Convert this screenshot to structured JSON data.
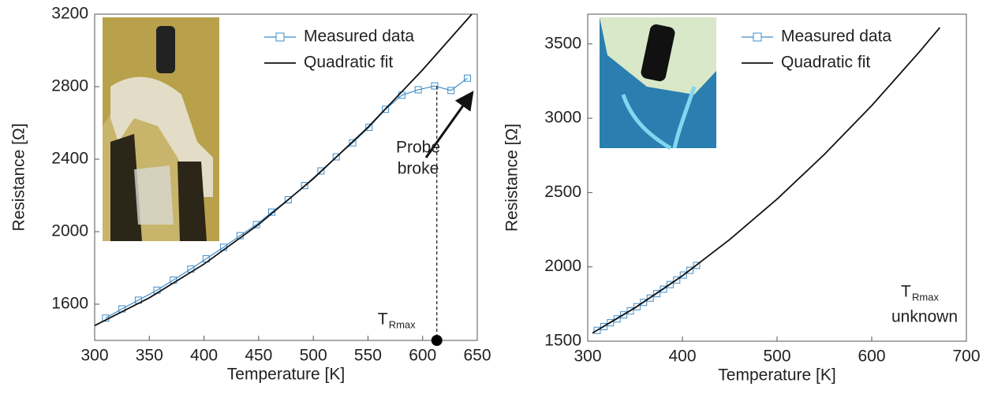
{
  "chart_data": [
    {
      "type": "line",
      "x_label": "Temperature [K]",
      "y_label": "Resistance [Ω]",
      "xlim": [
        300,
        650
      ],
      "xticks": [
        300,
        350,
        400,
        450,
        500,
        550,
        600,
        650
      ],
      "ylim": [
        1400,
        3200
      ],
      "yticks": [
        1600,
        2000,
        2400,
        2800,
        3200
      ],
      "legend": "top",
      "series": [
        {
          "name": "Measured data",
          "color": "#3f8cc8",
          "marker": "square",
          "x": [
            310,
            325,
            340,
            357,
            372,
            388,
            402,
            418,
            433,
            448,
            462,
            477,
            492,
            507,
            521,
            536,
            551,
            566,
            581,
            596,
            611,
            626,
            641
          ],
          "values": [
            1523,
            1574,
            1622,
            1677,
            1733,
            1794,
            1850,
            1914,
            1978,
            2039,
            2108,
            2176,
            2254,
            2335,
            2413,
            2490,
            2576,
            2675,
            2753,
            2783,
            2804,
            2779,
            2847
          ]
        },
        {
          "name": "Quadratic fit",
          "color": "#111111",
          "x": [
            300,
            350,
            400,
            450,
            500,
            550,
            600,
            645
          ],
          "values": [
            1482,
            1635,
            1821,
            2040,
            2292,
            2576,
            2893,
            3200
          ]
        }
      ],
      "annotations": [
        {
          "lines": [
            "Probe",
            "broke"
          ]
        },
        {
          "text": "T",
          "subscript": "Rmax",
          "x": 613
        }
      ]
    },
    {
      "type": "line",
      "x_label": "Temperature [K]",
      "y_label": "Resistance [Ω]",
      "xlim": [
        300,
        700
      ],
      "xticks": [
        300,
        400,
        500,
        600,
        700
      ],
      "ylim": [
        1500,
        3700
      ],
      "yticks": [
        1500,
        2000,
        2500,
        3000,
        3500
      ],
      "legend": "top",
      "series": [
        {
          "name": "Measured data",
          "color": "#3f8cc8",
          "marker": "square",
          "x": [
            310,
            317,
            324,
            331,
            338,
            345,
            352,
            359,
            366,
            373,
            380,
            387,
            394,
            401,
            408,
            415
          ],
          "values": [
            1573,
            1598,
            1624,
            1650,
            1677,
            1704,
            1732,
            1761,
            1790,
            1820,
            1850,
            1881,
            1912,
            1945,
            1977,
            2010
          ]
        },
        {
          "name": "Quadratic fit",
          "color": "#111111",
          "x": [
            305,
            350,
            400,
            450,
            500,
            550,
            600,
            650,
            672
          ],
          "values": [
            1555,
            1725,
            1940,
            2184,
            2456,
            2757,
            3085,
            3444,
            3610
          ]
        }
      ],
      "annotations": [
        {
          "text": "T",
          "subscript": "Rmax",
          "lines": [
            "unknown"
          ]
        }
      ]
    }
  ]
}
